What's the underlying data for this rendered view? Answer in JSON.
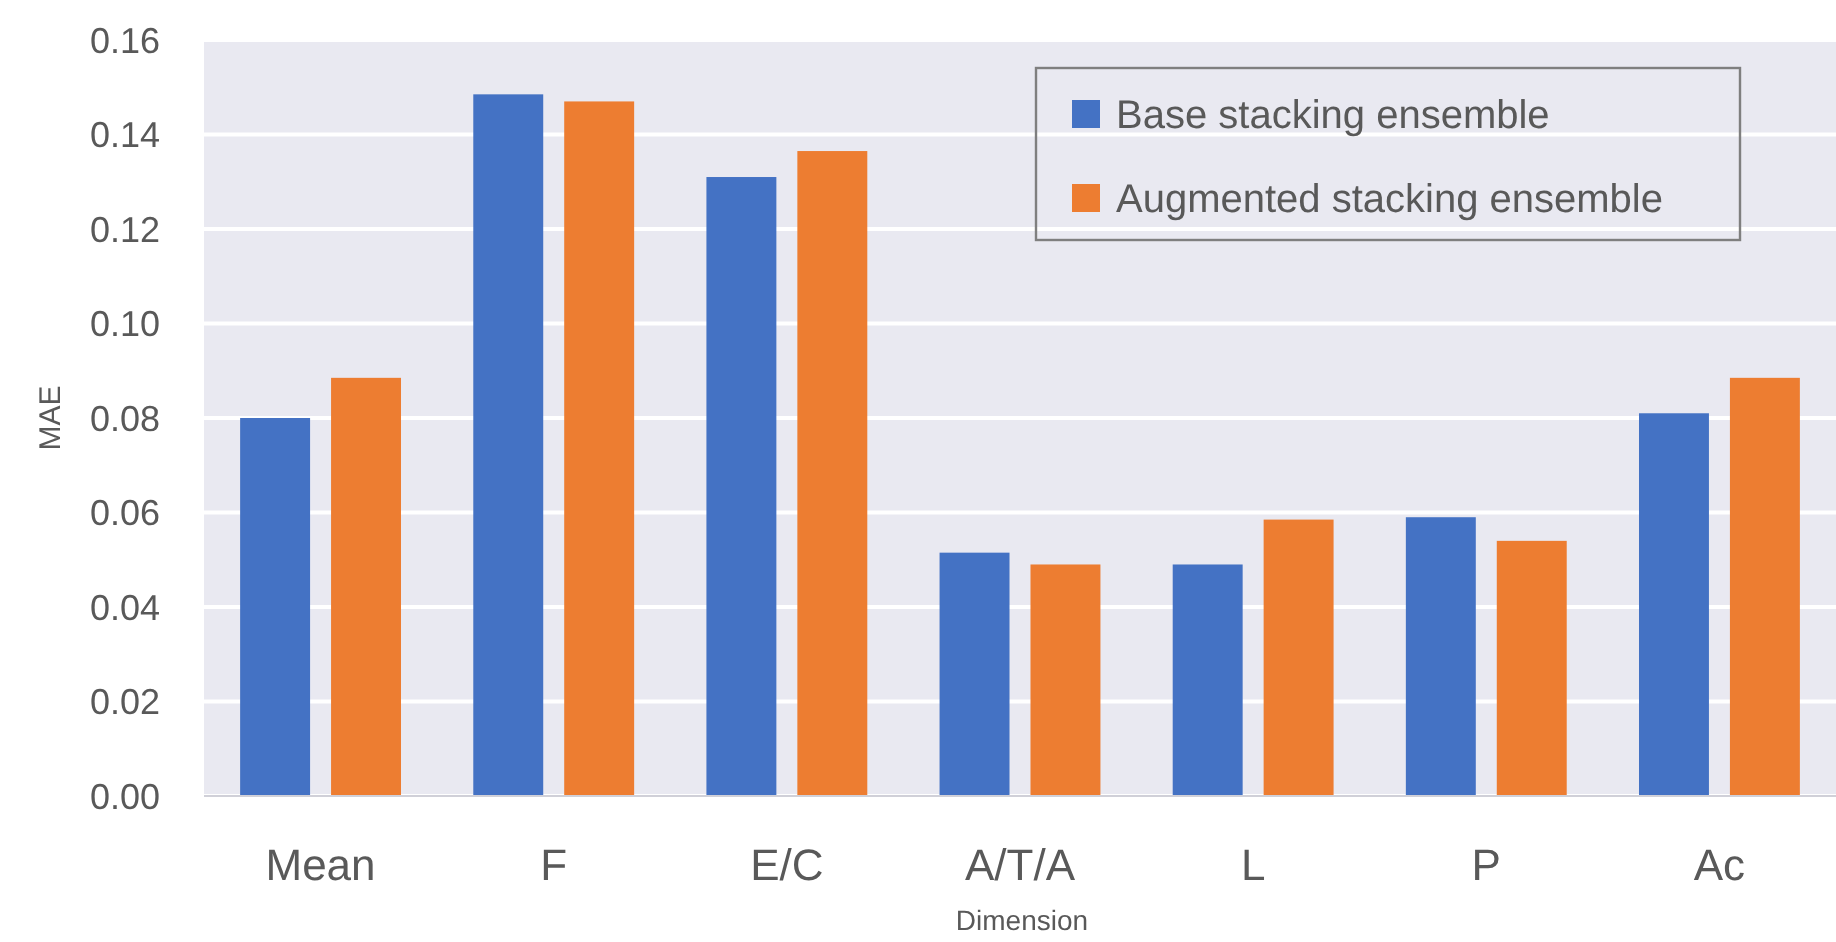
{
  "chart_data": {
    "type": "bar",
    "xlabel": "Dimension",
    "ylabel": "MAE",
    "categories": [
      "Mean",
      "F",
      "E/C",
      "A/T/A",
      "L",
      "P",
      "Ac"
    ],
    "series": [
      {
        "name": "Base stacking ensemble",
        "color": "#4472c4",
        "values": [
          0.08,
          0.1485,
          0.131,
          0.0515,
          0.049,
          0.059,
          0.081
        ]
      },
      {
        "name": "Augmented stacking ensemble",
        "color": "#ed7d31",
        "values": [
          0.0885,
          0.147,
          0.1365,
          0.049,
          0.0585,
          0.054,
          0.0885
        ]
      }
    ],
    "ylim": [
      0,
      0.16
    ],
    "yticks": [
      {
        "value": 0,
        "label": "0.00"
      },
      {
        "value": 0.02,
        "label": "0.02"
      },
      {
        "value": 0.04,
        "label": "0.04"
      },
      {
        "value": 0.06,
        "label": "0.06"
      },
      {
        "value": 0.08,
        "label": "0.08"
      },
      {
        "value": 0.1,
        "label": "0.10"
      },
      {
        "value": 0.12,
        "label": "0.12"
      },
      {
        "value": 0.14,
        "label": "0.14"
      },
      {
        "value": 0.16,
        "label": "0.16"
      }
    ],
    "grid": "y",
    "legend": "top right"
  }
}
